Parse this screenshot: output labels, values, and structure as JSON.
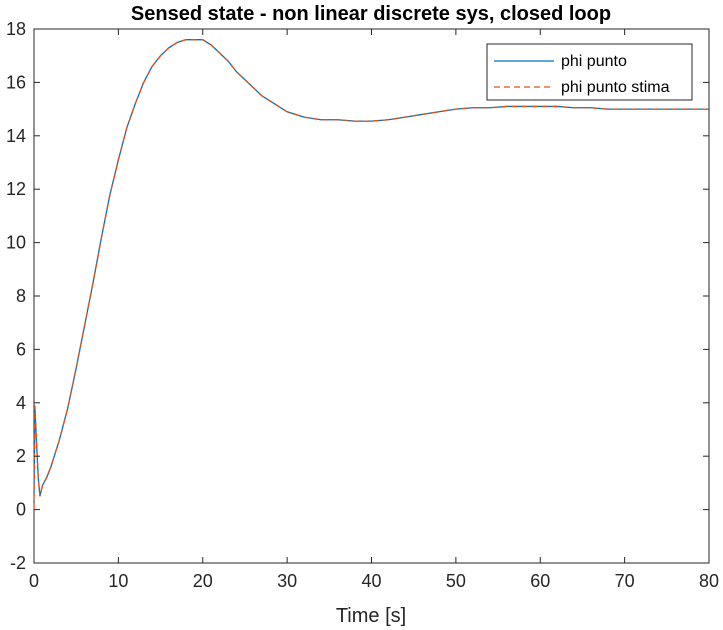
{
  "chart_data": {
    "type": "line",
    "title": "Sensed state - non linear discrete sys, closed loop",
    "xlabel": "Time [s]",
    "ylabel": "",
    "xlim": [
      0,
      80
    ],
    "ylim": [
      -2,
      18
    ],
    "xticks": [
      0,
      10,
      20,
      30,
      40,
      50,
      60,
      70,
      80
    ],
    "yticks": [
      -2,
      0,
      2,
      4,
      6,
      8,
      10,
      12,
      14,
      16,
      18
    ],
    "grid": false,
    "legend_position": "top-right",
    "series": [
      {
        "name": "phi punto",
        "color": "#0072BD",
        "style": "solid",
        "x": [
          0,
          0.1,
          0.3,
          0.5,
          0.7,
          1.0,
          1.5,
          2,
          3,
          4,
          5,
          6,
          7,
          8,
          9,
          10,
          11,
          12,
          13,
          14,
          15,
          16,
          17,
          18,
          19,
          20,
          21,
          22,
          23,
          24,
          25,
          26,
          27,
          28,
          29,
          30,
          32,
          34,
          36,
          38,
          40,
          42,
          44,
          46,
          48,
          50,
          52,
          54,
          56,
          58,
          60,
          62,
          64,
          66,
          68,
          70,
          72,
          74,
          76,
          78,
          80
        ],
        "y": [
          0.5,
          3.9,
          2.5,
          1.2,
          0.5,
          0.9,
          1.2,
          1.6,
          2.6,
          3.8,
          5.3,
          6.9,
          8.5,
          10.2,
          11.8,
          13.1,
          14.3,
          15.2,
          16.0,
          16.6,
          17.0,
          17.3,
          17.5,
          17.6,
          17.6,
          17.6,
          17.4,
          17.1,
          16.8,
          16.4,
          16.1,
          15.8,
          15.5,
          15.3,
          15.1,
          14.9,
          14.7,
          14.6,
          14.6,
          14.55,
          14.55,
          14.6,
          14.7,
          14.8,
          14.9,
          15.0,
          15.05,
          15.05,
          15.1,
          15.1,
          15.1,
          15.1,
          15.05,
          15.05,
          15.0,
          15.0,
          15.0,
          15.0,
          15.0,
          15.0,
          15.0
        ]
      },
      {
        "name": "phi punto stima",
        "color": "#D95319",
        "style": "dashed",
        "x": [
          0,
          0.1,
          0.3,
          0.5,
          0.7,
          1.0,
          1.5,
          2,
          3,
          4,
          5,
          6,
          7,
          8,
          9,
          10,
          11,
          12,
          13,
          14,
          15,
          16,
          17,
          18,
          19,
          20,
          21,
          22,
          23,
          24,
          25,
          26,
          27,
          28,
          29,
          30,
          32,
          34,
          36,
          38,
          40,
          42,
          44,
          46,
          48,
          50,
          52,
          54,
          56,
          58,
          60,
          62,
          64,
          66,
          68,
          70,
          72,
          74,
          76,
          78,
          80
        ],
        "y": [
          0.0,
          3.9,
          2.5,
          1.2,
          0.5,
          0.9,
          1.2,
          1.6,
          2.6,
          3.8,
          5.3,
          6.9,
          8.5,
          10.2,
          11.8,
          13.1,
          14.3,
          15.2,
          16.0,
          16.6,
          17.0,
          17.3,
          17.5,
          17.6,
          17.6,
          17.6,
          17.4,
          17.1,
          16.8,
          16.4,
          16.1,
          15.8,
          15.5,
          15.3,
          15.1,
          14.9,
          14.7,
          14.6,
          14.6,
          14.55,
          14.55,
          14.6,
          14.7,
          14.8,
          14.9,
          15.0,
          15.05,
          15.05,
          15.1,
          15.1,
          15.1,
          15.1,
          15.05,
          15.05,
          15.0,
          15.0,
          15.0,
          15.0,
          15.0,
          15.0,
          15.0
        ]
      }
    ]
  }
}
